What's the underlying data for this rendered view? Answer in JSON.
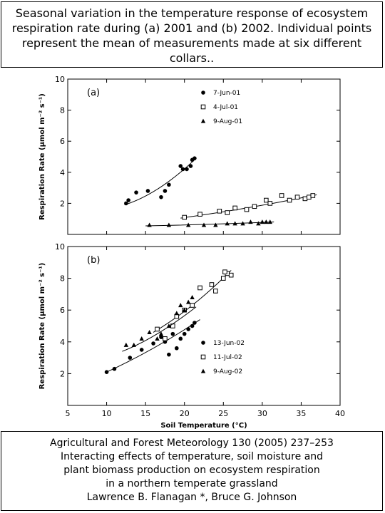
{
  "top_caption": {
    "lines": [
      "Seasonal variation in the temperature response of ecosystem",
      "respiration rate during (a) 2001 and (b) 2002. Individual points",
      "represent the mean of measurements made at six different",
      "collars.."
    ]
  },
  "bottom_caption": {
    "lines": [
      "Agricultural and Forest Meteorology 130 (2005) 237–253",
      "Interacting effects of temperature, soil moisture and",
      "plant biomass production on ecosystem respiration",
      "in a northern temperate grassland",
      "Lawrence B. Flanagan *, Bruce G. Johnson"
    ]
  },
  "chart_data": [
    {
      "type": "scatter",
      "panel_label": "(a)",
      "title": "",
      "xlabel": "Soil Temperature (°C)",
      "ylabel": "Respiration Rate (μmol m⁻² s⁻¹)",
      "xlim": [
        5,
        40
      ],
      "ylim": [
        0,
        10
      ],
      "x_ticks": [
        5,
        10,
        15,
        20,
        25,
        30,
        35,
        40
      ],
      "y_ticks": [
        2,
        4,
        6,
        8,
        10
      ],
      "legend_position": "top-right",
      "series": [
        {
          "name": "7-Jun-01",
          "marker": "circle-filled",
          "points": [
            [
              12.5,
              2.0
            ],
            [
              12.8,
              2.2
            ],
            [
              13.8,
              2.7
            ],
            [
              15.3,
              2.8
            ],
            [
              17.0,
              2.4
            ],
            [
              17.5,
              2.8
            ],
            [
              18.0,
              3.2
            ],
            [
              19.5,
              4.4
            ],
            [
              19.8,
              4.2
            ],
            [
              20.3,
              4.2
            ],
            [
              20.8,
              4.4
            ],
            [
              21.0,
              4.8
            ],
            [
              21.3,
              4.9
            ]
          ],
          "fit": [
            [
              12.3,
              1.9
            ],
            [
              16.8,
              3.0
            ],
            [
              21.5,
              4.9
            ]
          ]
        },
        {
          "name": "4-Jul-01",
          "marker": "square-open",
          "points": [
            [
              20.0,
              1.1
            ],
            [
              22.0,
              1.3
            ],
            [
              24.5,
              1.5
            ],
            [
              25.5,
              1.4
            ],
            [
              26.5,
              1.7
            ],
            [
              28.0,
              1.6
            ],
            [
              29.0,
              1.8
            ],
            [
              30.5,
              2.2
            ],
            [
              31.0,
              2.0
            ],
            [
              32.5,
              2.5
            ],
            [
              33.5,
              2.2
            ],
            [
              34.5,
              2.4
            ],
            [
              35.5,
              2.3
            ],
            [
              36.0,
              2.4
            ],
            [
              36.5,
              2.5
            ]
          ],
          "fit": [
            [
              19.5,
              1.05
            ],
            [
              28.0,
              1.7
            ],
            [
              37.0,
              2.55
            ]
          ]
        },
        {
          "name": "9-Aug-01",
          "marker": "triangle-filled",
          "points": [
            [
              15.5,
              0.6
            ],
            [
              18.0,
              0.6
            ],
            [
              20.5,
              0.6
            ],
            [
              22.5,
              0.6
            ],
            [
              24.0,
              0.6
            ],
            [
              25.5,
              0.7
            ],
            [
              26.5,
              0.7
            ],
            [
              27.5,
              0.7
            ],
            [
              28.5,
              0.8
            ],
            [
              29.5,
              0.7
            ],
            [
              30.0,
              0.8
            ],
            [
              30.5,
              0.8
            ],
            [
              31.0,
              0.8
            ]
          ],
          "fit": [
            [
              15.0,
              0.55
            ],
            [
              23.0,
              0.65
            ],
            [
              31.5,
              0.8
            ]
          ]
        }
      ]
    },
    {
      "type": "scatter",
      "panel_label": "(b)",
      "title": "",
      "xlabel": "Soil Temperature (°C)",
      "ylabel": "Respiration Rate (μmol m⁻² s⁻¹)",
      "xlim": [
        5,
        40
      ],
      "ylim": [
        0,
        10
      ],
      "x_ticks": [
        5,
        10,
        15,
        20,
        25,
        30,
        35,
        40
      ],
      "y_ticks": [
        2,
        4,
        6,
        8,
        10
      ],
      "legend_position": "bottom-right",
      "series": [
        {
          "name": "13-Jun-02",
          "marker": "circle-filled",
          "points": [
            [
              10.0,
              2.1
            ],
            [
              11.0,
              2.3
            ],
            [
              13.0,
              3.0
            ],
            [
              14.5,
              3.5
            ],
            [
              16.0,
              3.9
            ],
            [
              17.0,
              4.3
            ],
            [
              17.5,
              4.0
            ],
            [
              18.0,
              3.2
            ],
            [
              18.5,
              4.5
            ],
            [
              19.0,
              3.6
            ],
            [
              19.5,
              4.2
            ],
            [
              20.0,
              4.5
            ],
            [
              20.5,
              4.8
            ],
            [
              21.0,
              5.0
            ],
            [
              21.3,
              5.2
            ]
          ],
          "fit": [
            [
              10.0,
              2.1
            ],
            [
              16.0,
              3.6
            ],
            [
              22.0,
              5.4
            ]
          ]
        },
        {
          "name": "11-Jul-02",
          "marker": "square-open",
          "points": [
            [
              16.5,
              4.8
            ],
            [
              17.5,
              4.2
            ],
            [
              18.5,
              5.0
            ],
            [
              19.0,
              5.6
            ],
            [
              20.0,
              6.0
            ],
            [
              21.0,
              6.3
            ],
            [
              22.0,
              7.4
            ],
            [
              23.5,
              7.6
            ],
            [
              24.0,
              7.2
            ],
            [
              25.0,
              8.0
            ],
            [
              25.5,
              8.3
            ],
            [
              26.0,
              8.2
            ],
            [
              25.2,
              8.4
            ]
          ],
          "fit": [
            [
              16.0,
              4.6
            ],
            [
              21.0,
              6.3
            ],
            [
              26.0,
              8.5
            ]
          ]
        },
        {
          "name": "9-Aug-02",
          "marker": "triangle-filled",
          "points": [
            [
              12.5,
              3.8
            ],
            [
              13.5,
              3.8
            ],
            [
              14.5,
              4.2
            ],
            [
              15.5,
              4.6
            ],
            [
              16.5,
              4.2
            ],
            [
              17.0,
              4.5
            ],
            [
              18.0,
              5.0
            ],
            [
              19.0,
              5.8
            ],
            [
              19.5,
              6.3
            ],
            [
              20.0,
              6.0
            ],
            [
              20.5,
              6.5
            ],
            [
              21.0,
              6.8
            ]
          ],
          "fit": [
            [
              12.0,
              3.4
            ],
            [
              16.5,
              4.5
            ],
            [
              21.5,
              6.2
            ]
          ]
        }
      ]
    }
  ]
}
